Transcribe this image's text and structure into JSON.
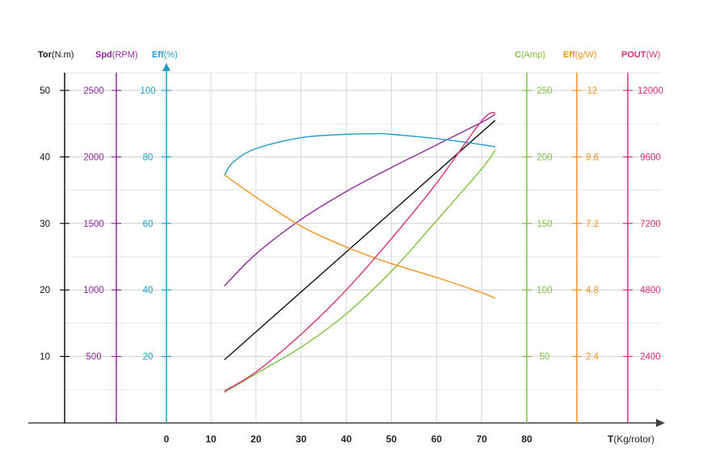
{
  "chart_data": {
    "type": "line",
    "x_axis": {
      "name": "T",
      "unit": "(Kg/rotor)",
      "min": 10,
      "max": 80,
      "ticks": [
        10,
        20,
        30,
        40,
        50,
        60,
        70,
        80
      ],
      "zero_label": "0"
    },
    "y_axes": [
      {
        "id": "tor",
        "name": "Tor",
        "unit": "(N.m)",
        "color": "#111111",
        "min": 0,
        "max": 50,
        "ticks": [
          10,
          20,
          30,
          40,
          50
        ],
        "tick_labels": [
          "10",
          "20",
          "30",
          "40",
          "50"
        ]
      },
      {
        "id": "spd",
        "name": "Spd",
        "unit": "(RPM)",
        "color": "#8e2b9e",
        "min": 0,
        "max": 2500,
        "ticks": [
          500,
          1000,
          1500,
          2000,
          2500
        ],
        "tick_labels": [
          "500",
          "1000",
          "1500",
          "2000",
          "2500"
        ]
      },
      {
        "id": "eff",
        "name": "Eff",
        "unit": "(%)",
        "color": "#1f9fc9",
        "min": 0,
        "max": 100,
        "ticks": [
          20,
          40,
          60,
          80,
          100
        ],
        "tick_labels": [
          "20",
          "40",
          "60",
          "80",
          "100"
        ]
      },
      {
        "id": "c",
        "name": "C",
        "unit": "(Amp)",
        "color": "#7cc242",
        "min": 0,
        "max": 250,
        "ticks": [
          50,
          100,
          150,
          200,
          250
        ],
        "tick_labels": [
          "50",
          "100",
          "150",
          "200",
          "250"
        ]
      },
      {
        "id": "effg",
        "name": "Eff",
        "unit": "(g/W)",
        "color": "#f0921e",
        "min": 0,
        "max": 12,
        "ticks": [
          2.4,
          4.8,
          7.2,
          9.6,
          12
        ],
        "tick_labels": [
          "2.4",
          "4.8",
          "7.2",
          "9.6",
          "12"
        ]
      },
      {
        "id": "pout",
        "name": "POUT",
        "unit": "(W)",
        "color": "#d6307a",
        "min": 0,
        "max": 12000,
        "ticks": [
          2400,
          4800,
          7200,
          9600,
          12000
        ],
        "tick_labels": [
          "2400",
          "4800",
          "7200",
          "9600",
          "12000"
        ]
      }
    ],
    "series": [
      {
        "axis": "tor",
        "color": "#111111",
        "x": [
          13,
          73
        ],
        "y": [
          9.5,
          45.5
        ]
      },
      {
        "axis": "spd",
        "color": "#8e2b9e",
        "x": [
          13,
          20,
          30,
          40,
          50,
          60,
          70,
          73
        ],
        "y": [
          1030,
          1270,
          1530,
          1740,
          1920,
          2090,
          2260,
          2320
        ]
      },
      {
        "axis": "eff",
        "color": "#1f9fc9",
        "x": [
          13,
          15,
          20,
          30,
          40,
          47,
          50,
          60,
          70,
          73
        ],
        "y": [
          74.5,
          78.5,
          82.5,
          85.8,
          86.8,
          87,
          86.8,
          85.5,
          83.7,
          83
        ]
      },
      {
        "axis": "c",
        "color": "#7cc242",
        "x": [
          13,
          20,
          30,
          40,
          50,
          60,
          70,
          73
        ],
        "y": [
          23,
          37,
          57,
          82,
          114,
          152,
          191,
          205
        ]
      },
      {
        "axis": "effg",
        "color": "#f0921e",
        "x": [
          13,
          20,
          30,
          40,
          50,
          60,
          70,
          73
        ],
        "y": [
          8.95,
          8.15,
          7.1,
          6.35,
          5.75,
          5.25,
          4.7,
          4.5
        ]
      },
      {
        "axis": "pout",
        "color": "#d6307a",
        "x": [
          13,
          20,
          30,
          40,
          50,
          60,
          70,
          73
        ],
        "y": [
          1150,
          1840,
          3200,
          4800,
          6650,
          8650,
          10900,
          11200
        ]
      }
    ],
    "grid": true,
    "legend": "none"
  }
}
